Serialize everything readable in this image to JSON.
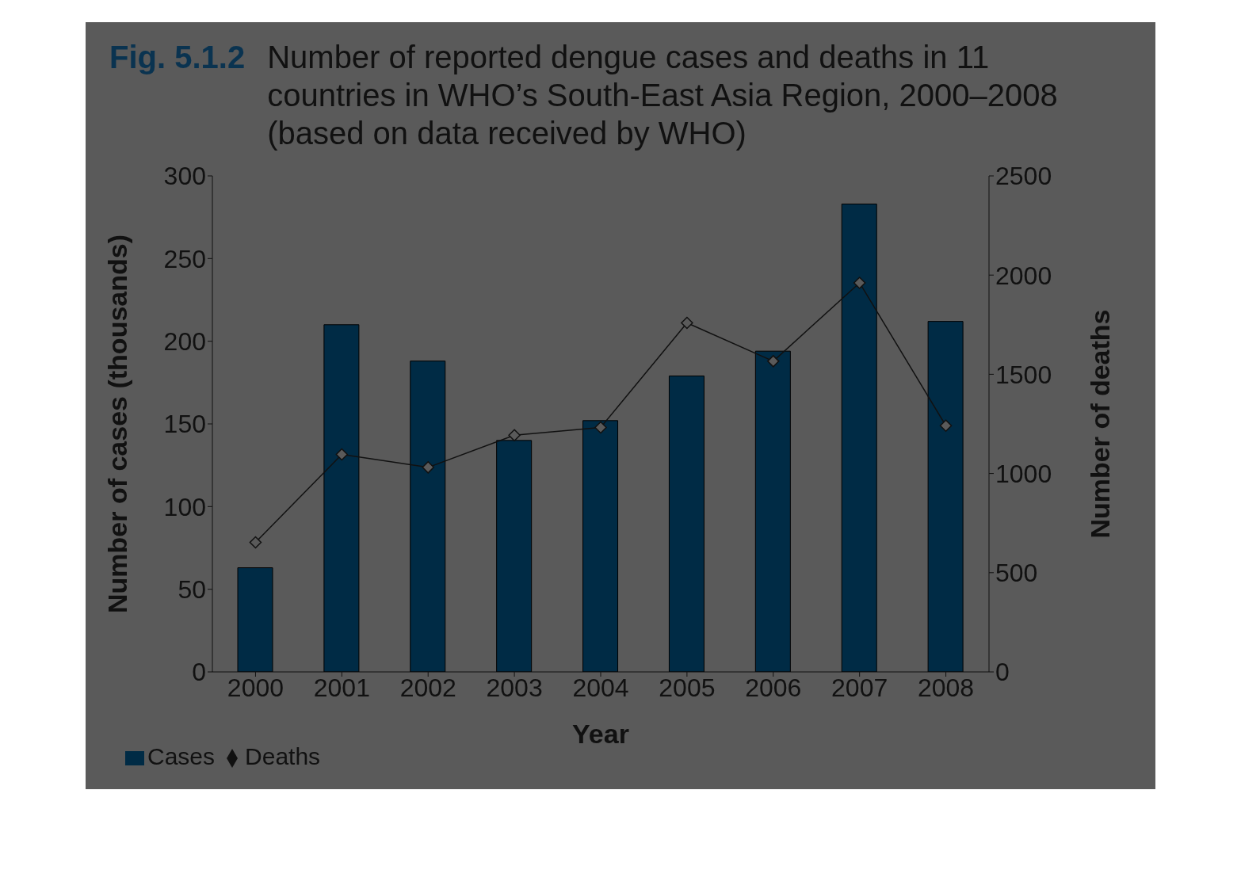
{
  "chart_data": {
    "type": "bar",
    "title": "Fig. 5.1.2",
    "subtitle": "Number of reported dengue cases and deaths in 11 countries in WHO’s South-East Asia Region, 2000–2008 (based on data received by WHO)",
    "xlabel": "Year",
    "ylabel": "Number of cases (thousands)",
    "y2label": "Number of deaths",
    "categories": [
      "2000",
      "2001",
      "2002",
      "2003",
      "2004",
      "2005",
      "2006",
      "2007",
      "2008"
    ],
    "series": [
      {
        "name": "Cases",
        "color": "#002b45",
        "values": [
          63,
          210,
          188,
          140,
          152,
          179,
          194,
          283,
          212
        ]
      },
      {
        "name": "Deaths",
        "type": "line",
        "axis": "y2",
        "color": "#111111",
        "marker": "diamond",
        "line_style": "solid",
        "values": [
          653,
          1096,
          1031,
          1193,
          1232,
          1759,
          1566,
          1961,
          1241
        ]
      }
    ],
    "ylim": [
      0,
      300
    ],
    "yticks": [
      0,
      50,
      100,
      150,
      200,
      250,
      300
    ],
    "y2lim": [
      0,
      2500
    ],
    "y2ticks": [
      0,
      500,
      1000,
      1500,
      2000,
      2500
    ],
    "grid": false,
    "legend": "bottom left"
  }
}
